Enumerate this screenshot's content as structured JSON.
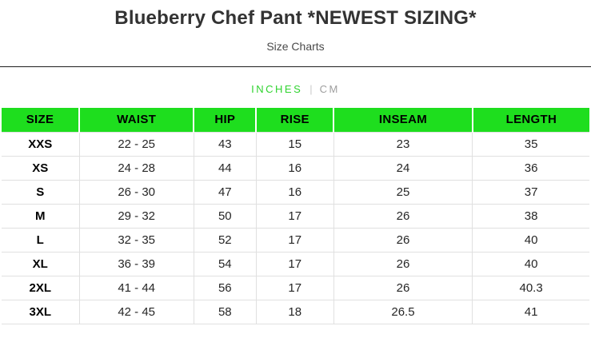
{
  "page": {
    "title": "Blueberry Chef Pant *NEWEST SIZING*",
    "subtitle": "Size Charts"
  },
  "unit_tabs": {
    "inches_label": "INCHES",
    "cm_label": "CM",
    "separator": "|",
    "active": "INCHES"
  },
  "size_chart": {
    "type": "table",
    "unit": "INCHES",
    "columns": [
      "SIZE",
      "WAIST",
      "HIP",
      "RISE",
      "INSEAM",
      "LENGTH"
    ],
    "rows": [
      [
        "XXS",
        "22 - 25",
        "43",
        "15",
        "23",
        "35"
      ],
      [
        "XS",
        "24 - 28",
        "44",
        "16",
        "24",
        "36"
      ],
      [
        "S",
        "26 - 30",
        "47",
        "16",
        "25",
        "37"
      ],
      [
        "M",
        "29 - 32",
        "50",
        "17",
        "26",
        "38"
      ],
      [
        "L",
        "32 - 35",
        "52",
        "17",
        "26",
        "40"
      ],
      [
        "XL",
        "36 - 39",
        "54",
        "17",
        "26",
        "40"
      ],
      [
        "2XL",
        "41 - 44",
        "56",
        "17",
        "26",
        "40.3"
      ],
      [
        "3XL",
        "42 - 45",
        "58",
        "18",
        "26.5",
        "41"
      ]
    ]
  },
  "colors": {
    "header_green": "#1ede1e",
    "inches_green": "#2fd32f",
    "cm_gray": "#9e9e9e",
    "title_text": "#333333",
    "subtitle_text": "#4a4a4a",
    "divider_dark": "#1d1d1d",
    "body_text": "#262626",
    "row_border": "#e0e0e0"
  }
}
